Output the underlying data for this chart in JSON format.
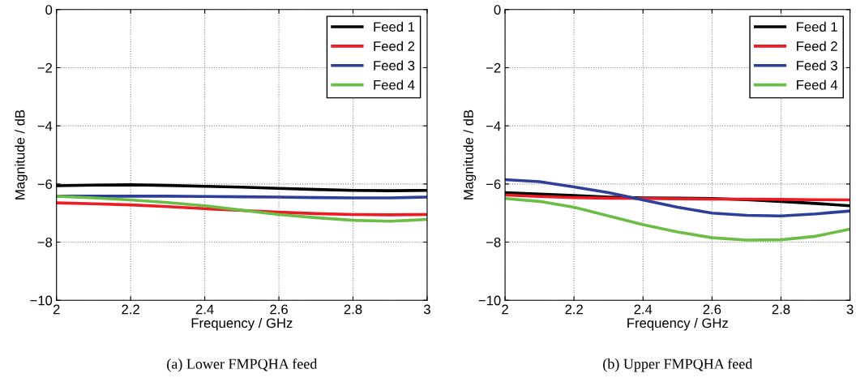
{
  "chart_data": [
    {
      "type": "line",
      "xlabel": "Frequency / GHz",
      "ylabel": "Magnitude / dB",
      "annotations": [
        "(a) Lower FMPQHA feed"
      ],
      "x": [
        2,
        2.1,
        2.2,
        2.3,
        2.4,
        2.5,
        2.6,
        2.7,
        2.8,
        2.9,
        3
      ],
      "series": [
        {
          "name": "Feed 1",
          "color": "#000000",
          "values": [
            -6.06,
            -6.04,
            -6.03,
            -6.05,
            -6.08,
            -6.11,
            -6.15,
            -6.19,
            -6.22,
            -6.23,
            -6.22
          ]
        },
        {
          "name": "Feed 2",
          "color": "#ed1c24",
          "values": [
            -6.65,
            -6.68,
            -6.72,
            -6.78,
            -6.85,
            -6.91,
            -6.97,
            -7.02,
            -7.05,
            -7.06,
            -7.05
          ]
        },
        {
          "name": "Feed 3",
          "color": "#2e3f99",
          "values": [
            -6.42,
            -6.42,
            -6.42,
            -6.42,
            -6.43,
            -6.44,
            -6.45,
            -6.47,
            -6.48,
            -6.48,
            -6.45
          ]
        },
        {
          "name": "Feed 4",
          "color": "#6abd45",
          "values": [
            -6.42,
            -6.48,
            -6.55,
            -6.64,
            -6.75,
            -6.9,
            -7.05,
            -7.16,
            -7.25,
            -7.28,
            -7.22
          ]
        }
      ],
      "xlim": [
        2,
        3
      ],
      "ylim": [
        -10,
        0
      ],
      "xticks": [
        2,
        2.2,
        2.4,
        2.6,
        2.8,
        3
      ],
      "yticks": [
        {
          "value": -10,
          "label": "−10"
        },
        {
          "value": -8,
          "label": "−8"
        },
        {
          "value": -6,
          "label": "−6"
        },
        {
          "value": -4,
          "label": "−4"
        },
        {
          "value": -2,
          "label": "−2"
        },
        0
      ],
      "grid": true,
      "legend": "top right",
      "line_style": "solid",
      "marker": "none"
    },
    {
      "type": "line",
      "xlabel": "Frequency / GHz",
      "ylabel": "Magnitude / dB",
      "annotations": [
        "(b) Upper FMPQHA feed"
      ],
      "x": [
        2,
        2.1,
        2.2,
        2.3,
        2.4,
        2.5,
        2.6,
        2.7,
        2.8,
        2.9,
        3
      ],
      "series": [
        {
          "name": "Feed 1",
          "color": "#000000",
          "values": [
            -6.3,
            -6.35,
            -6.4,
            -6.45,
            -6.48,
            -6.49,
            -6.5,
            -6.54,
            -6.6,
            -6.67,
            -6.75
          ]
        },
        {
          "name": "Feed 2",
          "color": "#ed1c24",
          "values": [
            -6.38,
            -6.43,
            -6.47,
            -6.49,
            -6.5,
            -6.51,
            -6.52,
            -6.52,
            -6.53,
            -6.54,
            -6.55
          ]
        },
        {
          "name": "Feed 3",
          "color": "#2e3f99",
          "values": [
            -5.85,
            -5.92,
            -6.1,
            -6.3,
            -6.55,
            -6.8,
            -7.0,
            -7.08,
            -7.1,
            -7.03,
            -6.93
          ]
        },
        {
          "name": "Feed 4",
          "color": "#6abd45",
          "values": [
            -6.5,
            -6.6,
            -6.8,
            -7.1,
            -7.4,
            -7.65,
            -7.85,
            -7.93,
            -7.92,
            -7.8,
            -7.55
          ]
        }
      ],
      "xlim": [
        2,
        3
      ],
      "ylim": [
        -10,
        0
      ],
      "xticks": [
        2,
        2.2,
        2.4,
        2.6,
        2.8,
        3
      ],
      "yticks": [
        {
          "value": -10,
          "label": "−10"
        },
        {
          "value": -8,
          "label": "−8"
        },
        {
          "value": -6,
          "label": "−6"
        },
        {
          "value": -4,
          "label": "−4"
        },
        {
          "value": -2,
          "label": "−2"
        },
        0
      ],
      "grid": true,
      "legend": "top right",
      "line_style": "solid",
      "marker": "none"
    }
  ]
}
